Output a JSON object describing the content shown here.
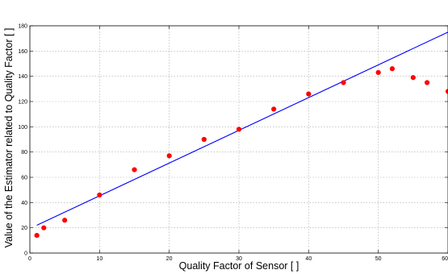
{
  "chart_data": {
    "type": "scatter",
    "title": "",
    "xlabel": "Quality Factor of Sensor [ ]",
    "ylabel": "Value of the Estimator related to Quality Factor [ ]",
    "xlim": [
      0,
      60
    ],
    "ylim": [
      0,
      180
    ],
    "x_ticks": [
      0,
      10,
      20,
      30,
      40,
      50,
      60
    ],
    "y_ticks": [
      0,
      20,
      40,
      60,
      80,
      100,
      120,
      140,
      160,
      180
    ],
    "x_tick_labels": [
      "0",
      "10",
      "20",
      "30",
      "40",
      "50",
      "60"
    ],
    "y_tick_labels": [
      "0",
      "20",
      "40",
      "60",
      "80",
      "100",
      "120",
      "140",
      "160",
      "180"
    ],
    "grid": true,
    "legend": "none",
    "series": [
      {
        "kind": "points",
        "color": "#ff0000",
        "points": [
          {
            "x": 1,
            "y": 14
          },
          {
            "x": 2,
            "y": 20
          },
          {
            "x": 5,
            "y": 26
          },
          {
            "x": 10,
            "y": 46
          },
          {
            "x": 15,
            "y": 66
          },
          {
            "x": 20,
            "y": 77
          },
          {
            "x": 25,
            "y": 90
          },
          {
            "x": 30,
            "y": 98
          },
          {
            "x": 35,
            "y": 114
          },
          {
            "x": 40,
            "y": 126
          },
          {
            "x": 45,
            "y": 135
          },
          {
            "x": 50,
            "y": 143
          },
          {
            "x": 52,
            "y": 146
          },
          {
            "x": 55,
            "y": 139
          },
          {
            "x": 57,
            "y": 135
          },
          {
            "x": 60,
            "y": 128
          }
        ]
      },
      {
        "kind": "fit-line",
        "color": "#0000ff",
        "points": [
          {
            "x": 1,
            "y": 22
          },
          {
            "x": 60,
            "y": 175
          }
        ]
      }
    ]
  }
}
